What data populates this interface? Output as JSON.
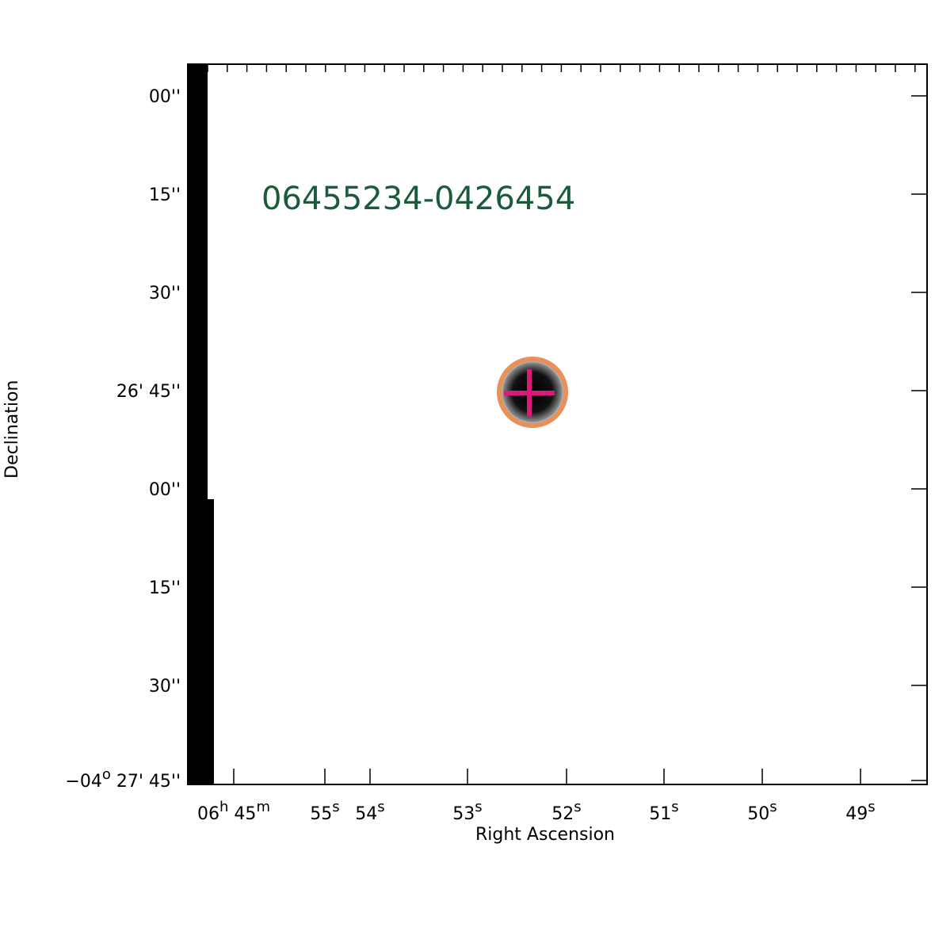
{
  "image": {
    "label": "06455234-0426454"
  },
  "axes": {
    "x_label": "Right Ascension",
    "y_label": "Declination",
    "x_ticks": [
      [
        "06",
        "h",
        " 45",
        "m"
      ],
      [
        "55",
        "s"
      ],
      [
        "54",
        "s"
      ],
      [
        "53",
        "s"
      ],
      [
        "52",
        "s"
      ],
      [
        "51",
        "s"
      ],
      [
        "50",
        "s"
      ],
      [
        "49",
        "s"
      ]
    ],
    "y_ticks": [
      [
        "00''"
      ],
      [
        "15''"
      ],
      [
        "30''"
      ],
      [
        "26' 45''"
      ],
      [
        "00''"
      ],
      [
        "15''"
      ],
      [
        "30''"
      ],
      [
        "−04",
        "o",
        " 27' 45''"
      ]
    ]
  }
}
